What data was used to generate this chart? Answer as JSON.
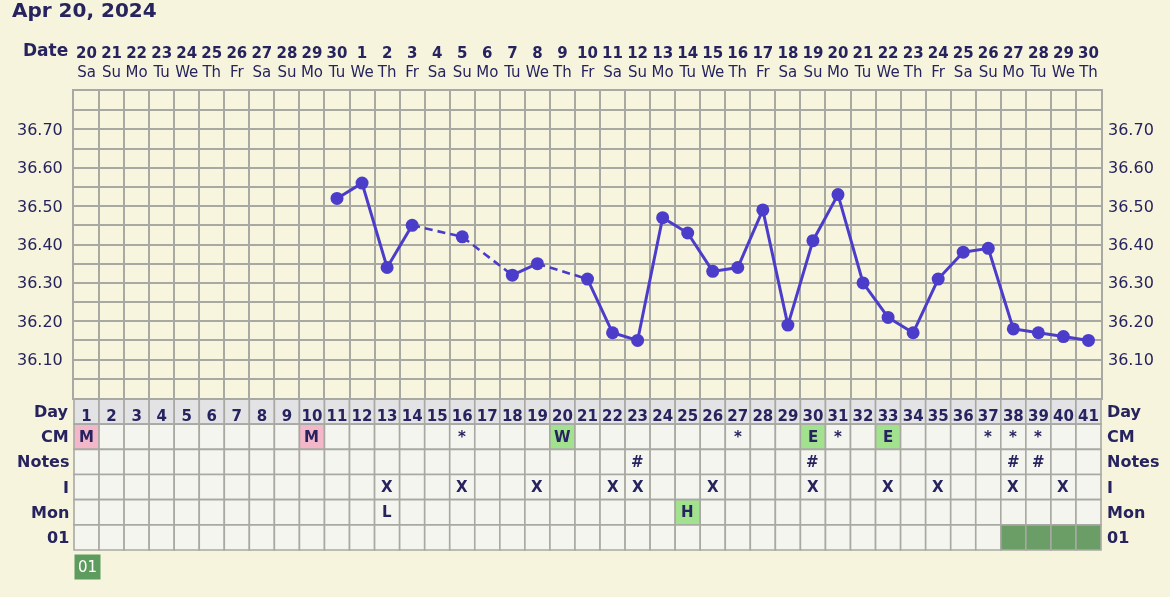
{
  "chart_data": [
    {
      "type": "line",
      "title": "Apr 20, 2024",
      "xlabel": "Day",
      "x2label": "Date",
      "grid": true,
      "marker": "circle",
      "x": [
        11,
        12,
        13,
        14,
        15,
        16,
        17,
        18,
        19,
        20,
        21,
        22,
        23,
        24,
        25,
        26,
        27,
        28,
        29,
        30,
        31,
        32,
        33,
        34,
        35,
        36,
        37,
        38,
        39,
        40,
        41
      ],
      "series": [
        {
          "color": "#4b3dca",
          "line_style": "solid",
          "values": [
            36.52,
            36.56,
            36.34,
            36.45,
            null,
            36.42,
            null,
            36.32,
            36.35,
            null,
            36.31,
            36.17,
            36.15,
            36.47,
            36.43,
            36.33,
            36.34,
            36.49,
            36.19,
            36.41,
            36.53,
            36.3,
            36.21,
            36.17,
            36.31,
            36.38,
            36.39,
            36.18,
            36.17,
            36.16,
            36.15
          ]
        },
        {
          "color": "#4a3cc9",
          "line_style": "dashed",
          "marker": "none",
          "x": [
            14,
            16,
            18
          ],
          "values": [
            36.45,
            36.42,
            36.32
          ]
        },
        {
          "color": "#4a3cc9",
          "line_style": "dashed",
          "marker": "none",
          "x": [
            19,
            21
          ],
          "values": [
            36.35,
            36.31
          ]
        }
      ],
      "xlim": [
        0.5,
        41.5
      ],
      "xticks": [
        1,
        2,
        3,
        4,
        5,
        6,
        7,
        8,
        9,
        10,
        11,
        12,
        13,
        14,
        15,
        16,
        17,
        18,
        19,
        20,
        21,
        22,
        23,
        24,
        25,
        26,
        27,
        28,
        29,
        30,
        31,
        32,
        33,
        34,
        35,
        36,
        37,
        38,
        39,
        40,
        41
      ],
      "x2lim": [
        "2024-04-19T12:00",
        "2024-05-30T12:00"
      ],
      "x2ticks": [
        {
          "value": "2024-04-20",
          "label": "20\nSa"
        },
        {
          "value": "2024-04-21",
          "label": "21\nSu"
        },
        {
          "value": "2024-04-22",
          "label": "22\nMo"
        },
        {
          "value": "2024-04-23",
          "label": "23\nTu"
        },
        {
          "value": "2024-04-24",
          "label": "24\nWe"
        },
        {
          "value": "2024-04-25",
          "label": "25\nTh"
        },
        {
          "value": "2024-04-26",
          "label": "26\nFr"
        },
        {
          "value": "2024-04-27",
          "label": "27\nSa"
        },
        {
          "value": "2024-04-28",
          "label": "28\nSu"
        },
        {
          "value": "2024-04-29",
          "label": "29\nMo"
        },
        {
          "value": "2024-04-30",
          "label": "30\nTu"
        },
        {
          "value": "2024-05-01",
          "label": "1\nWe"
        },
        {
          "value": "2024-05-02",
          "label": "2\nTh"
        },
        {
          "value": "2024-05-03",
          "label": "3\nFr"
        },
        {
          "value": "2024-05-04",
          "label": "4\nSa"
        },
        {
          "value": "2024-05-05",
          "label": "5\nSu"
        },
        {
          "value": "2024-05-06",
          "label": "6\nMo"
        },
        {
          "value": "2024-05-07",
          "label": "7\nTu"
        },
        {
          "value": "2024-05-08",
          "label": "8\nWe"
        },
        {
          "value": "2024-05-09",
          "label": "9\nTh"
        },
        {
          "value": "2024-05-10",
          "label": "10\nFr"
        },
        {
          "value": "2024-05-11",
          "label": "11\nSa"
        },
        {
          "value": "2024-05-12",
          "label": "12\nSu"
        },
        {
          "value": "2024-05-13",
          "label": "13\nMo"
        },
        {
          "value": "2024-05-14",
          "label": "14\nTu"
        },
        {
          "value": "2024-05-15",
          "label": "15\nWe"
        },
        {
          "value": "2024-05-16",
          "label": "16\nTh"
        },
        {
          "value": "2024-05-17",
          "label": "17\nFr"
        },
        {
          "value": "2024-05-18",
          "label": "18\nSa"
        },
        {
          "value": "2024-05-19",
          "label": "19\nSu"
        },
        {
          "value": "2024-05-20",
          "label": "20\nMo"
        },
        {
          "value": "2024-05-21",
          "label": "21\nTu"
        },
        {
          "value": "2024-05-22",
          "label": "22\nWe"
        },
        {
          "value": "2024-05-23",
          "label": "23\nTh"
        },
        {
          "value": "2024-05-24",
          "label": "24\nFr"
        },
        {
          "value": "2024-05-25",
          "label": "25\nSa"
        },
        {
          "value": "2024-05-26",
          "label": "26\nSu"
        },
        {
          "value": "2024-05-27",
          "label": "27\nMo"
        },
        {
          "value": "2024-05-28",
          "label": "28\nTu"
        },
        {
          "value": "2024-05-29",
          "label": "29\nWe"
        },
        {
          "value": "2024-05-30",
          "label": "30\nTh"
        }
      ],
      "ylim": [
        36.0,
        36.8
      ],
      "yticks": [
        {
          "value": 36.05,
          "label": null
        },
        {
          "value": 36.1,
          "label": "36.10"
        },
        {
          "value": 36.15,
          "label": null
        },
        {
          "value": 36.2,
          "label": "36.20"
        },
        {
          "value": 36.25,
          "label": null
        },
        {
          "value": 36.3,
          "label": "36.30"
        },
        {
          "value": 36.35,
          "label": null
        },
        {
          "value": 36.4,
          "label": "36.40"
        },
        {
          "value": 36.45,
          "label": null
        },
        {
          "value": 36.5,
          "label": "36.50"
        },
        {
          "value": 36.55,
          "label": null
        },
        {
          "value": 36.6,
          "label": "36.60"
        },
        {
          "value": 36.65,
          "label": null
        },
        {
          "value": 36.7,
          "label": "36.70"
        },
        {
          "value": 36.75,
          "label": null
        }
      ],
      "y2lim": [
        36.0,
        36.8
      ],
      "y2ticks": [
        {
          "value": 36.05,
          "label": null
        },
        {
          "value": 36.1,
          "label": "36.10"
        },
        {
          "value": 36.15,
          "label": null
        },
        {
          "value": 36.2,
          "label": "36.20"
        },
        {
          "value": 36.25,
          "label": null
        },
        {
          "value": 36.3,
          "label": "36.30"
        },
        {
          "value": 36.35,
          "label": null
        },
        {
          "value": 36.4,
          "label": "36.40"
        },
        {
          "value": 36.45,
          "label": null
        },
        {
          "value": 36.5,
          "label": "36.50"
        },
        {
          "value": 36.55,
          "label": null
        },
        {
          "value": 36.6,
          "label": "36.60"
        },
        {
          "value": 36.65,
          "label": null
        },
        {
          "value": 36.7,
          "label": "36.70"
        },
        {
          "value": 36.75,
          "label": null
        }
      ]
    },
    {
      "type": "other",
      "categories": [
        null,
        null,
        null,
        null,
        null,
        null,
        null,
        null,
        null,
        null,
        null,
        null,
        null,
        null,
        null,
        null,
        null,
        null,
        null,
        null,
        null,
        null,
        null,
        null,
        null,
        null,
        null,
        null,
        null,
        null,
        null,
        null,
        null,
        null,
        null,
        null,
        null,
        null,
        null,
        null,
        null
      ],
      "y_categories": [
        "CM",
        "Notes",
        "I",
        "Mon",
        "01"
      ],
      "y2_categories": [
        "CM",
        "Notes",
        "I",
        "Mon",
        "01"
      ],
      "cell_labels": [
        [
          "M",
          null,
          null,
          null,
          null,
          null,
          null,
          null,
          null,
          "M",
          null,
          null,
          null,
          null,
          null,
          "*",
          null,
          null,
          null,
          "W",
          null,
          null,
          null,
          null,
          null,
          null,
          "*",
          null,
          null,
          "E",
          "*",
          null,
          "E",
          null,
          null,
          null,
          "*",
          "*",
          "*",
          null,
          null
        ],
        [
          null,
          null,
          null,
          null,
          null,
          null,
          null,
          null,
          null,
          null,
          null,
          null,
          null,
          null,
          null,
          null,
          null,
          null,
          null,
          null,
          null,
          null,
          "#",
          null,
          null,
          null,
          null,
          null,
          null,
          "#",
          null,
          null,
          null,
          null,
          null,
          null,
          null,
          "#",
          "#",
          null,
          null
        ],
        [
          null,
          null,
          null,
          null,
          null,
          null,
          null,
          null,
          null,
          null,
          null,
          null,
          "X",
          null,
          null,
          "X",
          null,
          null,
          "X",
          null,
          null,
          "X",
          "X",
          null,
          null,
          "X",
          null,
          null,
          null,
          "X",
          null,
          null,
          "X",
          null,
          "X",
          null,
          null,
          "X",
          null,
          "X",
          null
        ],
        [
          null,
          null,
          null,
          null,
          null,
          null,
          null,
          null,
          null,
          null,
          null,
          null,
          "L",
          null,
          null,
          null,
          null,
          null,
          null,
          null,
          null,
          null,
          null,
          null,
          "H",
          null,
          null,
          null,
          null,
          null,
          null,
          null,
          null,
          null,
          null,
          null,
          null,
          null,
          null,
          null,
          null
        ],
        [
          null,
          null,
          null,
          null,
          null,
          null,
          null,
          null,
          null,
          null,
          null,
          null,
          null,
          null,
          null,
          null,
          null,
          null,
          null,
          null,
          null,
          null,
          null,
          null,
          null,
          null,
          null,
          null,
          null,
          null,
          null,
          null,
          null,
          null,
          null,
          null,
          null,
          null,
          null,
          null,
          null
        ]
      ],
      "colors": [
        [
          "#f2b7c9",
          null,
          null,
          null,
          null,
          null,
          null,
          null,
          null,
          "#f2b7c9",
          null,
          null,
          null,
          null,
          null,
          null,
          null,
          null,
          null,
          "#a2e28e",
          null,
          null,
          null,
          null,
          null,
          null,
          null,
          null,
          null,
          "#a2e28e",
          null,
          null,
          "#a2e28e",
          null,
          null,
          null,
          null,
          null,
          null,
          null,
          null
        ],
        [
          null,
          null,
          null,
          null,
          null,
          null,
          null,
          null,
          null,
          null,
          null,
          null,
          null,
          null,
          null,
          null,
          null,
          null,
          null,
          null,
          null,
          null,
          null,
          null,
          null,
          null,
          null,
          null,
          null,
          null,
          null,
          null,
          null,
          null,
          null,
          null,
          null,
          null,
          null,
          null,
          null
        ],
        [
          null,
          null,
          null,
          null,
          null,
          null,
          null,
          null,
          null,
          null,
          null,
          null,
          null,
          null,
          null,
          null,
          null,
          null,
          null,
          null,
          null,
          null,
          null,
          null,
          null,
          null,
          null,
          null,
          null,
          null,
          null,
          null,
          null,
          null,
          null,
          null,
          null,
          null,
          null,
          null,
          null
        ],
        [
          null,
          null,
          null,
          null,
          null,
          null,
          null,
          null,
          null,
          null,
          null,
          null,
          null,
          null,
          null,
          null,
          null,
          null,
          null,
          null,
          null,
          null,
          null,
          null,
          "#a2e28e",
          null,
          null,
          null,
          null,
          null,
          null,
          null,
          null,
          null,
          null,
          null,
          null,
          null,
          null,
          null,
          null
        ],
        [
          null,
          null,
          null,
          null,
          null,
          null,
          null,
          null,
          null,
          null,
          null,
          null,
          null,
          null,
          null,
          null,
          null,
          null,
          null,
          null,
          null,
          null,
          null,
          null,
          null,
          null,
          null,
          null,
          null,
          null,
          null,
          null,
          null,
          null,
          null,
          null,
          null,
          "#6a9e66",
          "#6a9e66",
          "#6a9e66",
          "#6a9e66"
        ]
      ],
      "annotations": [
        "01"
      ]
    }
  ]
}
